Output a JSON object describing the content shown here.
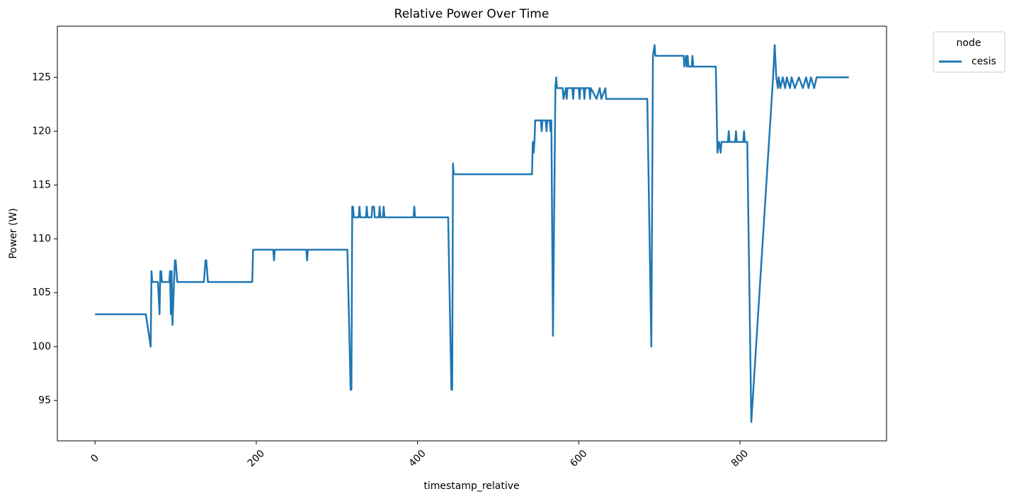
{
  "chart_data": {
    "type": "line",
    "title": "Relative Power Over Time",
    "x_label": "timestamp_relative",
    "y_label": "Power (W)",
    "legend_title": "node",
    "legend_position": "outside upper right",
    "x": [
      0,
      63,
      69,
      70,
      71,
      78,
      80,
      81,
      82,
      83,
      92,
      93,
      94,
      95,
      96,
      99,
      100,
      102,
      135,
      137,
      138,
      140,
      195,
      196,
      221,
      222,
      223,
      262,
      263,
      264,
      313,
      317,
      318,
      319,
      320,
      321,
      327,
      328,
      329,
      336,
      337,
      338,
      343,
      344,
      346,
      347,
      352,
      353,
      354,
      357,
      358,
      359,
      395,
      396,
      397,
      438,
      442,
      443,
      444,
      445,
      542,
      543,
      544,
      545,
      546,
      553,
      554,
      555,
      559,
      560,
      561,
      564,
      565,
      566,
      568,
      571,
      572,
      573,
      580,
      581,
      584,
      585,
      586,
      592,
      593,
      594,
      600,
      601,
      602,
      606,
      607,
      608,
      613,
      614,
      615,
      622,
      626,
      628,
      633,
      634,
      685,
      690,
      692,
      694,
      695,
      730,
      731,
      733,
      734,
      735,
      736,
      740,
      741,
      742,
      770,
      772,
      774,
      776,
      777,
      785,
      786,
      787,
      794,
      795,
      796,
      804,
      805,
      806,
      809,
      814,
      841,
      843,
      845,
      847,
      848,
      850,
      853,
      856,
      858,
      862,
      864,
      868,
      873,
      878,
      882,
      885,
      888,
      892,
      895,
      935
    ],
    "series": [
      {
        "name": "cesis",
        "color": "#1f77b4",
        "values": [
          103,
          103,
          100,
          107,
          106,
          106,
          103,
          107,
          107,
          106,
          106,
          107,
          103,
          107,
          102,
          108,
          108,
          106,
          106,
          108,
          108,
          106,
          106,
          109,
          109,
          108,
          109,
          109,
          108,
          109,
          109,
          96,
          96,
          113,
          113,
          112,
          112,
          113,
          112,
          112,
          113,
          112,
          112,
          113,
          113,
          112,
          112,
          113,
          112,
          112,
          113,
          112,
          112,
          113,
          112,
          112,
          96,
          96,
          117,
          116,
          116,
          119,
          118,
          119,
          121,
          121,
          120,
          121,
          121,
          120,
          121,
          121,
          120,
          121,
          101,
          124,
          125,
          124,
          124,
          123,
          124,
          123,
          124,
          124,
          123,
          124,
          124,
          123,
          124,
          124,
          123,
          124,
          124,
          123,
          124,
          123,
          124,
          123,
          124,
          123,
          123,
          100,
          127,
          128,
          127,
          127,
          126,
          127,
          126,
          127,
          126,
          126,
          127,
          126,
          126,
          118,
          119,
          118,
          119,
          119,
          120,
          119,
          119,
          120,
          119,
          119,
          120,
          119,
          119,
          93,
          125,
          128,
          125,
          124,
          125,
          124,
          125,
          124,
          125,
          124,
          125,
          124,
          125,
          124,
          125,
          124,
          125,
          124,
          125,
          125
        ]
      }
    ],
    "xlim": [
      -46.75,
      981.75
    ],
    "xticks": [
      0,
      200,
      400,
      600,
      800
    ],
    "ylim": [
      91.25,
      129.75
    ],
    "yticks": [
      95,
      100,
      105,
      110,
      115,
      120,
      125
    ],
    "grid": false
  }
}
